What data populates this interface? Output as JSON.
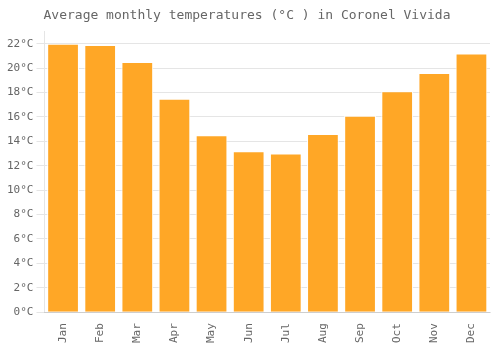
{
  "chart_data": {
    "type": "bar",
    "title": "Average monthly temperatures (°C ) in Coronel Vivida",
    "categories": [
      "Jan",
      "Feb",
      "Mar",
      "Apr",
      "May",
      "Jun",
      "Jul",
      "Aug",
      "Sep",
      "Oct",
      "Nov",
      "Dec"
    ],
    "values": [
      22.0,
      21.9,
      20.5,
      17.5,
      14.5,
      13.2,
      13.0,
      14.6,
      16.1,
      18.1,
      19.6,
      21.2
    ],
    "color": "#FFA726",
    "ylim": [
      0,
      23
    ],
    "yticks": [
      {
        "value": 0,
        "label": "0°C"
      },
      {
        "value": 2,
        "label": "2°C"
      },
      {
        "value": 4,
        "label": "4°C"
      },
      {
        "value": 6,
        "label": "6°C"
      },
      {
        "value": 8,
        "label": "8°C"
      },
      {
        "value": 10,
        "label": "10°C"
      },
      {
        "value": 12,
        "label": "12°C"
      },
      {
        "value": 14,
        "label": "14°C"
      },
      {
        "value": 16,
        "label": "16°C"
      },
      {
        "value": 18,
        "label": "18°C"
      },
      {
        "value": 20,
        "label": "20°C"
      },
      {
        "value": 22,
        "label": "22°C"
      }
    ],
    "grid": true
  }
}
